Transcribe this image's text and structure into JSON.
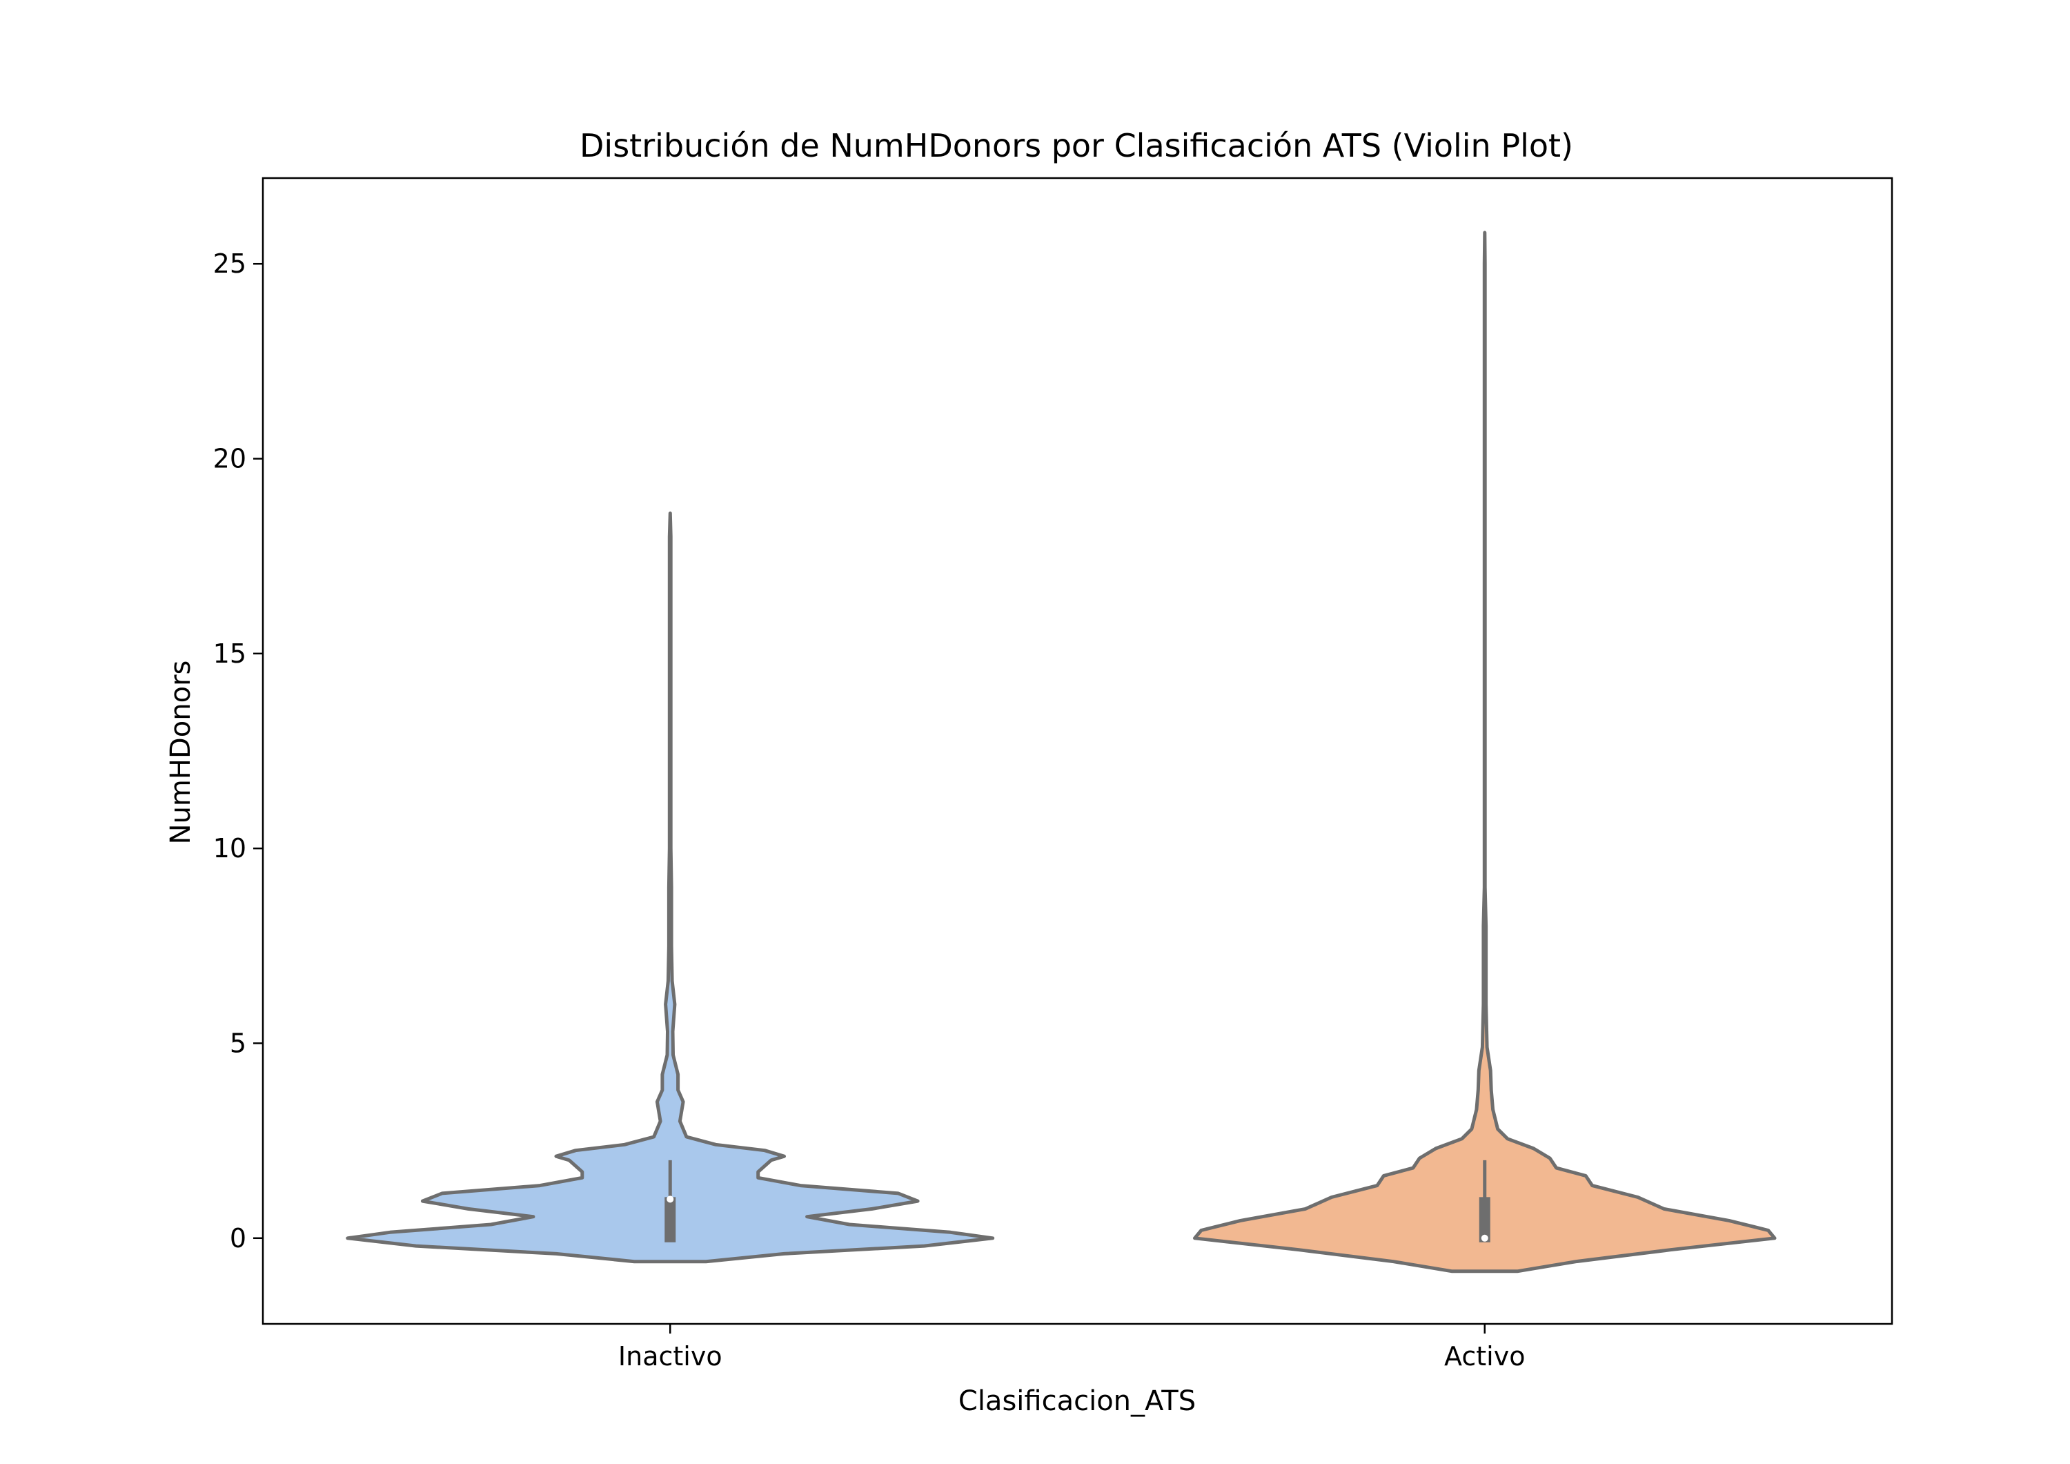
{
  "chart_data": {
    "type": "violin",
    "title": "Distribución de NumHDonors por Clasificación ATS (Violin Plot)",
    "xlabel": "Clasificacion_ATS",
    "ylabel": "NumHDonors",
    "categories": [
      "Inactivo",
      "Activo"
    ],
    "ylim": [
      -2.2,
      27.2
    ],
    "yticks": [
      0,
      5,
      10,
      15,
      20,
      25
    ],
    "ytick_labels": [
      "0",
      "5",
      "10",
      "15",
      "20",
      "25"
    ],
    "grid": false,
    "legend": "none",
    "outline_color": "#6e6e6e",
    "series": [
      {
        "category": "Inactivo",
        "color": "#a9c8ec",
        "median": 1,
        "q1": 0,
        "q3": 1,
        "whisker_low": 0,
        "whisker_high": 2,
        "density": [
          [
            -0.6,
            0.11
          ],
          [
            -0.4,
            0.35
          ],
          [
            -0.2,
            0.78
          ],
          [
            0,
            0.99
          ],
          [
            0.15,
            0.86
          ],
          [
            0.35,
            0.55
          ],
          [
            0.55,
            0.42
          ],
          [
            0.75,
            0.62
          ],
          [
            0.95,
            0.76
          ],
          [
            1.15,
            0.7
          ],
          [
            1.35,
            0.4
          ],
          [
            1.55,
            0.27
          ],
          [
            1.7,
            0.27
          ],
          [
            2.0,
            0.31
          ],
          [
            2.1,
            0.35
          ],
          [
            2.25,
            0.29
          ],
          [
            2.4,
            0.14
          ],
          [
            2.6,
            0.05
          ],
          [
            3.0,
            0.03
          ],
          [
            3.5,
            0.04
          ],
          [
            3.8,
            0.024
          ],
          [
            4.2,
            0.024
          ],
          [
            4.7,
            0.009
          ],
          [
            5.3,
            0.008
          ],
          [
            6.0,
            0.014
          ],
          [
            6.6,
            0.006
          ],
          [
            7.5,
            0.004
          ],
          [
            9.0,
            0.004
          ],
          [
            10.0,
            0.002
          ],
          [
            13.0,
            0.002
          ],
          [
            16.0,
            0.002
          ],
          [
            18.0,
            0.002
          ],
          [
            18.6,
            0.0
          ]
        ]
      },
      {
        "category": "Activo",
        "color": "#f2b891",
        "median": 0,
        "q1": 0,
        "q3": 1,
        "whisker_low": 0,
        "whisker_high": 2,
        "density": [
          [
            -0.85,
            0.1
          ],
          [
            -0.6,
            0.28
          ],
          [
            -0.3,
            0.57
          ],
          [
            0,
            0.89
          ],
          [
            0.2,
            0.87
          ],
          [
            0.45,
            0.75
          ],
          [
            0.75,
            0.55
          ],
          [
            1.05,
            0.47
          ],
          [
            1.35,
            0.33
          ],
          [
            1.6,
            0.31
          ],
          [
            1.8,
            0.22
          ],
          [
            2.05,
            0.2
          ],
          [
            2.3,
            0.15
          ],
          [
            2.55,
            0.07
          ],
          [
            2.8,
            0.04
          ],
          [
            3.3,
            0.025
          ],
          [
            3.8,
            0.02
          ],
          [
            4.3,
            0.018
          ],
          [
            4.9,
            0.007
          ],
          [
            6.0,
            0.004
          ],
          [
            8.0,
            0.004
          ],
          [
            9.0,
            0.001
          ],
          [
            10.0,
            0.001
          ],
          [
            12.0,
            0.001
          ],
          [
            16.0,
            0.001
          ],
          [
            20.0,
            0.001
          ],
          [
            25.0,
            0.001
          ],
          [
            25.8,
            0.0
          ]
        ]
      }
    ]
  }
}
